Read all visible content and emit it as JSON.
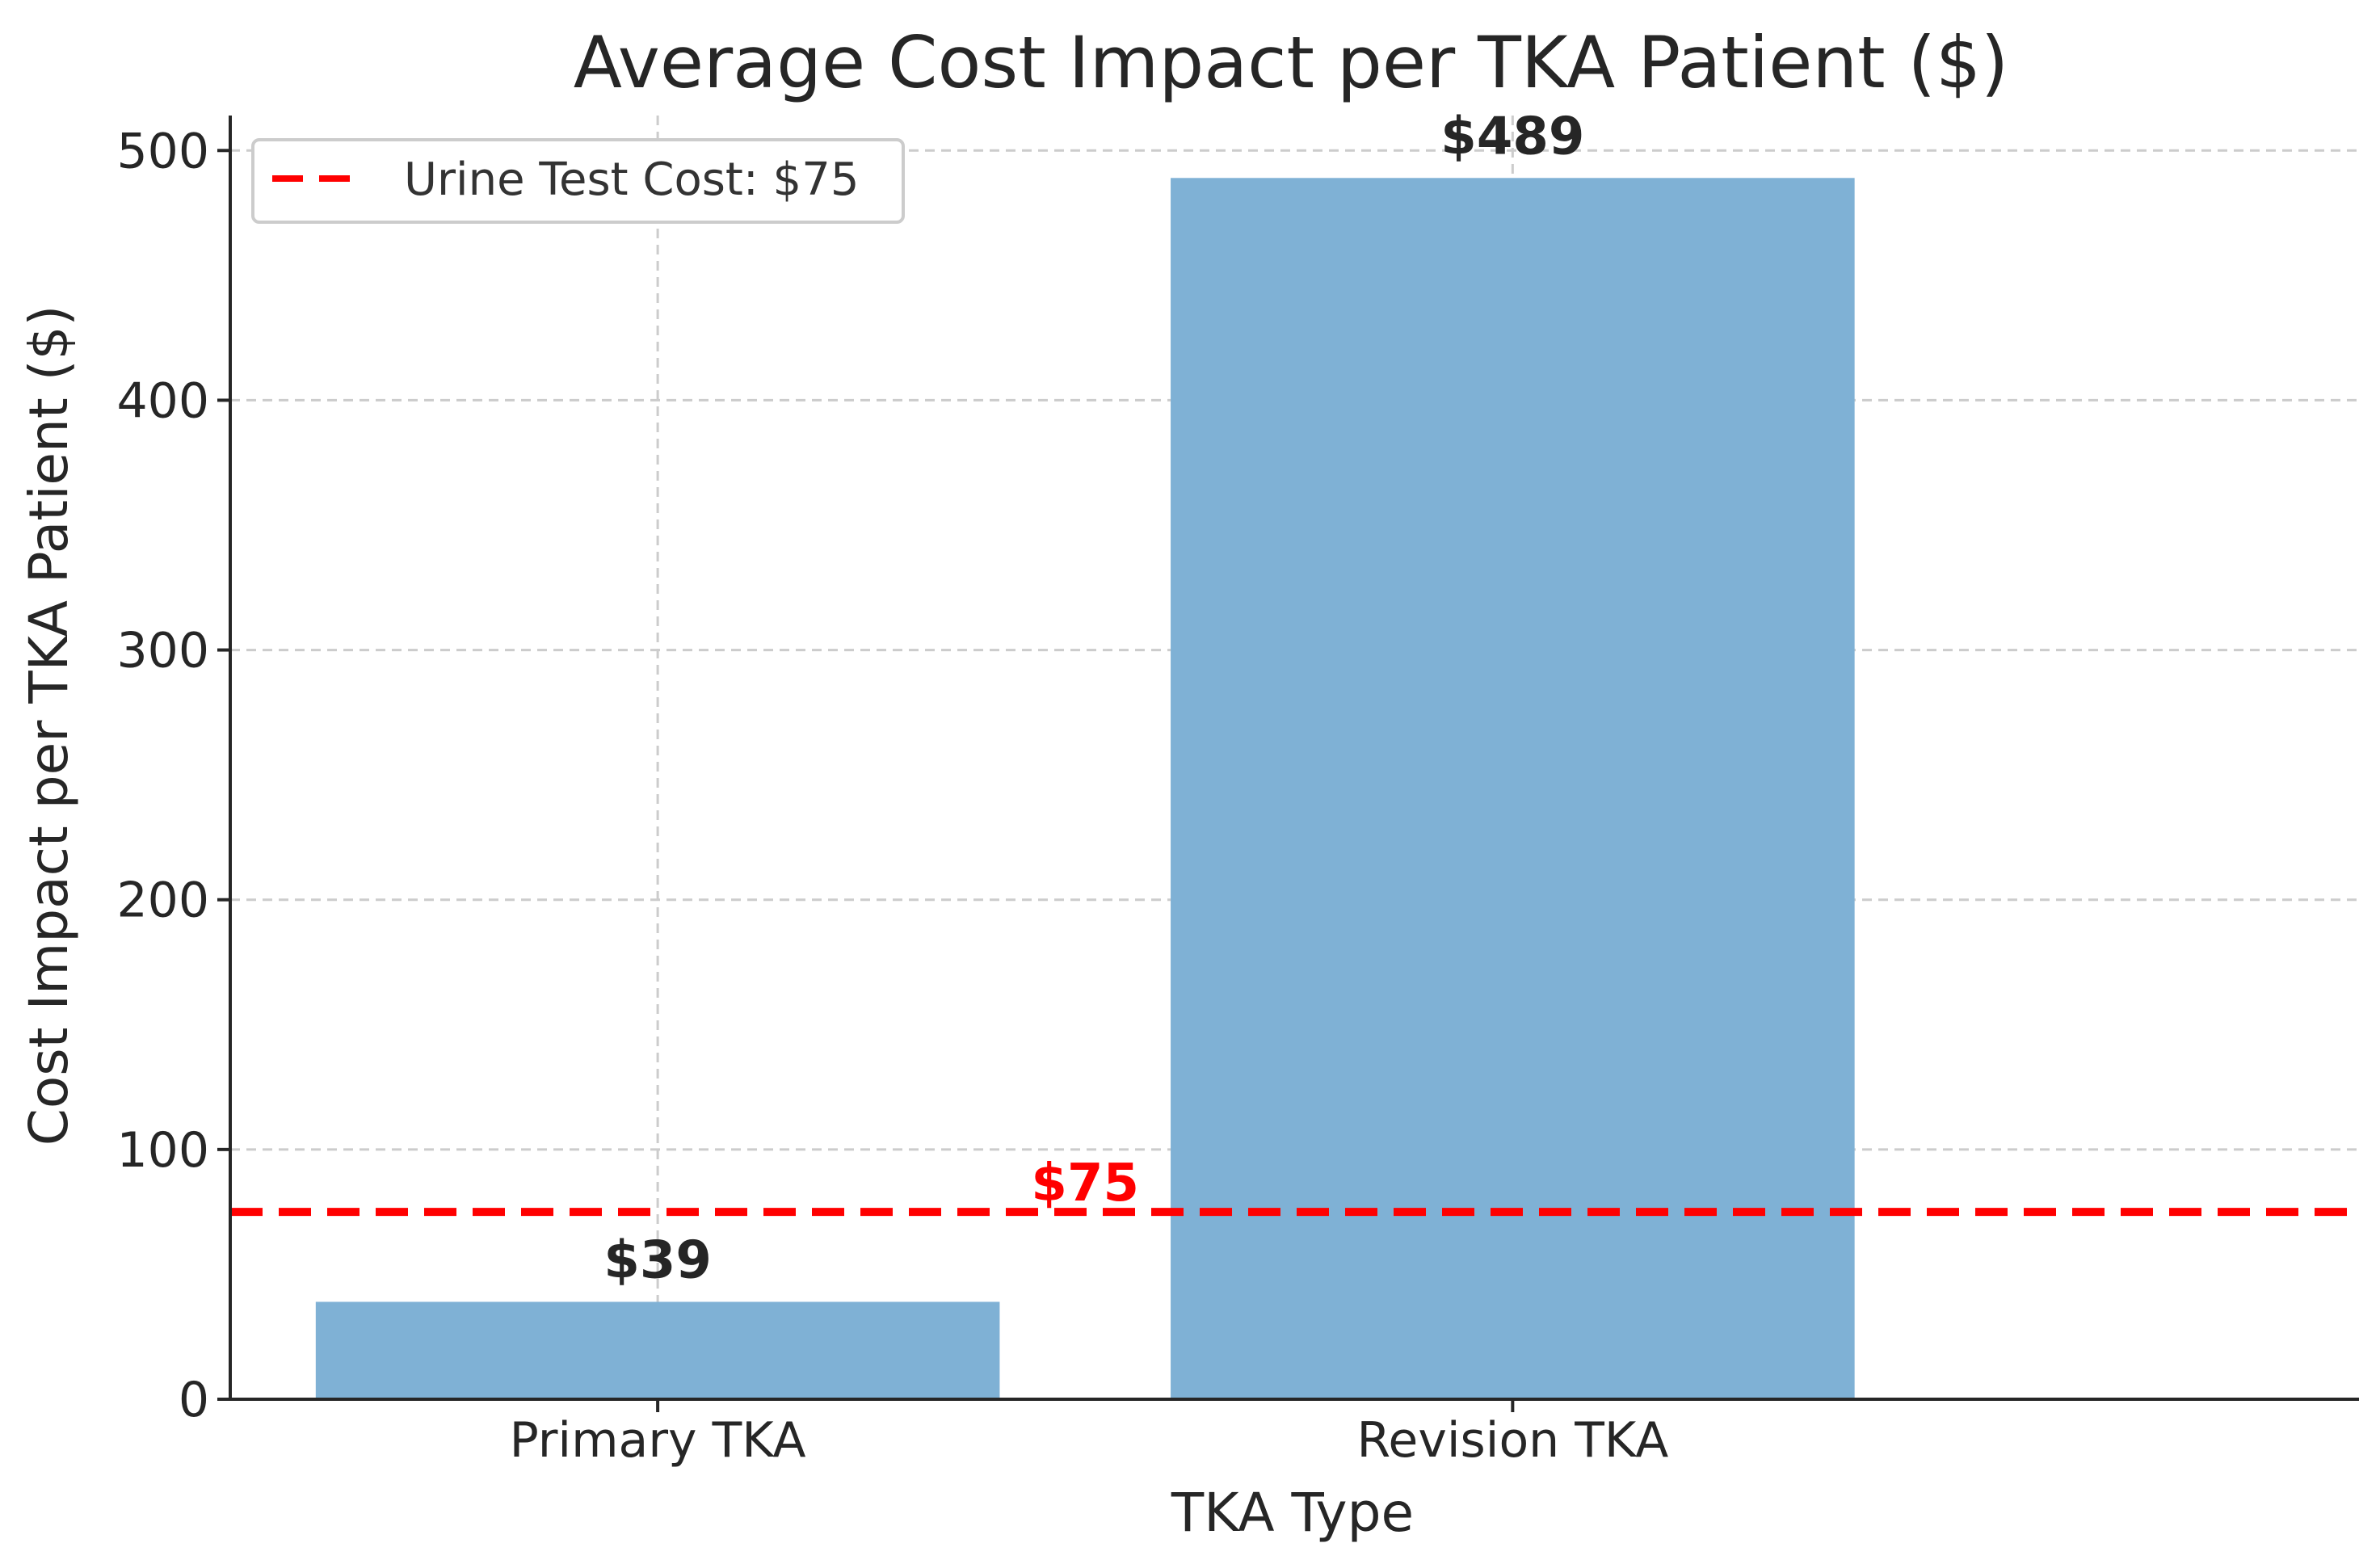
{
  "chart_data": {
    "type": "bar",
    "title": "Average Cost Impact per TKA Patient ($)",
    "xlabel": "TKA Type",
    "ylabel": "Cost Impact per TKA Patient ($)",
    "categories": [
      "Primary TKA",
      "Revision TKA"
    ],
    "values": [
      39,
      489
    ],
    "value_labels": [
      "$39",
      "$489"
    ],
    "ylim": [
      0,
      514
    ],
    "yticks": [
      0,
      100,
      200,
      300,
      400,
      500
    ],
    "grid": true,
    "bar_color": "#7fb1d5",
    "reference_line": {
      "value": 75,
      "label": "$75",
      "legend": "Urine Test Cost: $75",
      "color": "#ff0000",
      "style": "dashed"
    },
    "legend_position": "top-left"
  }
}
